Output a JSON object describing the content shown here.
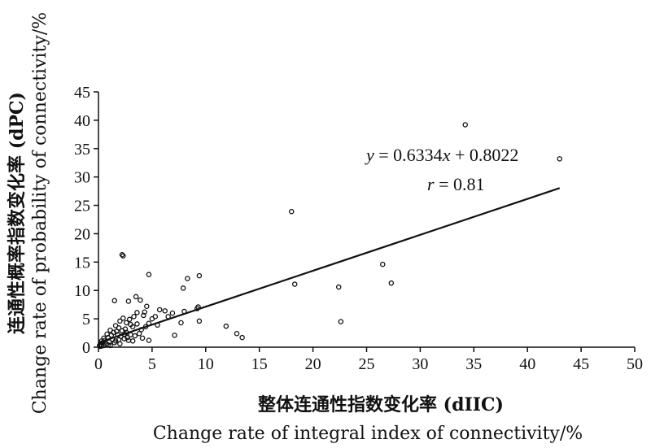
{
  "chart_data": {
    "type": "scatter",
    "xlabel_cn": "整体连通性指数变化率 (dIIC)",
    "xlabel_en": "Change rate of integral index of connectivity/%",
    "ylabel_cn": "连通性概率指数变化率 (dPC)",
    "ylabel_en": "Change rate of probability of connectivity/%",
    "xlim": [
      0,
      50
    ],
    "ylim": [
      0,
      45
    ],
    "xticks": [
      "0",
      "5",
      "10",
      "15",
      "20",
      "25",
      "30",
      "35",
      "40",
      "45",
      "50"
    ],
    "yticks": [
      "0",
      "5",
      "10",
      "15",
      "20",
      "25",
      "30",
      "35",
      "40",
      "45"
    ],
    "grid": false,
    "regression": {
      "equation_y": "y",
      "equation_rest": " = 0.6334",
      "equation_x": "x",
      "equation_tail": " + 0.8022",
      "r_label": "r",
      "r_rest": " = 0.81",
      "slope": 0.6334,
      "intercept": 0.8022,
      "x_range": [
        0,
        43
      ]
    },
    "points": [
      [
        34.2,
        39.2
      ],
      [
        43.0,
        33.2
      ],
      [
        18.0,
        23.9
      ],
      [
        26.5,
        14.6
      ],
      [
        27.3,
        11.3
      ],
      [
        22.4,
        10.6
      ],
      [
        18.3,
        11.1
      ],
      [
        22.6,
        4.5
      ],
      [
        2.2,
        16.3
      ],
      [
        2.3,
        16.1
      ],
      [
        4.7,
        12.8
      ],
      [
        9.4,
        12.6
      ],
      [
        8.3,
        12.1
      ],
      [
        7.9,
        10.4
      ],
      [
        9.3,
        7.1
      ],
      [
        9.2,
        6.8
      ],
      [
        9.4,
        4.6
      ],
      [
        7.7,
        4.3
      ],
      [
        11.9,
        3.7
      ],
      [
        12.9,
        2.4
      ],
      [
        13.4,
        1.7
      ],
      [
        7.1,
        2.1
      ],
      [
        4.7,
        1.2
      ],
      [
        4.1,
        1.6
      ],
      [
        8.0,
        6.3
      ],
      [
        6.9,
        6.0
      ],
      [
        6.2,
        6.4
      ],
      [
        5.7,
        6.6
      ],
      [
        5.3,
        5.4
      ],
      [
        5.5,
        3.9
      ],
      [
        4.5,
        7.2
      ],
      [
        4.3,
        6.2
      ],
      [
        4.7,
        4.2
      ],
      [
        3.9,
        8.3
      ],
      [
        3.5,
        8.9
      ],
      [
        3.6,
        6.1
      ],
      [
        3.3,
        5.4
      ],
      [
        2.8,
        8.1
      ],
      [
        2.9,
        4.9
      ],
      [
        2.6,
        4.3
      ],
      [
        2.3,
        5.1
      ],
      [
        2.0,
        4.6
      ],
      [
        1.5,
        8.2
      ],
      [
        1.6,
        3.8
      ],
      [
        1.9,
        3.4
      ],
      [
        2.2,
        2.9
      ],
      [
        2.6,
        2.6
      ],
      [
        3.0,
        2.2
      ],
      [
        3.4,
        2.0
      ],
      [
        3.8,
        2.4
      ],
      [
        4.0,
        3.1
      ],
      [
        3.2,
        3.6
      ],
      [
        2.7,
        1.7
      ],
      [
        2.1,
        1.9
      ],
      [
        1.8,
        2.2
      ],
      [
        1.4,
        2.6
      ],
      [
        1.2,
        2.1
      ],
      [
        1.1,
        3.0
      ],
      [
        0.9,
        1.7
      ],
      [
        0.8,
        2.3
      ],
      [
        0.6,
        1.2
      ],
      [
        0.5,
        1.6
      ],
      [
        0.4,
        0.8
      ],
      [
        0.3,
        1.1
      ],
      [
        0.2,
        0.5
      ],
      [
        0.1,
        0.3
      ],
      [
        0.7,
        0.6
      ],
      [
        1.0,
        0.9
      ],
      [
        1.3,
        1.4
      ],
      [
        1.6,
        1.1
      ],
      [
        1.9,
        1.3
      ],
      [
        2.4,
        1.5
      ],
      [
        2.8,
        1.2
      ],
      [
        3.2,
        1.1
      ],
      [
        0.5,
        0.3
      ],
      [
        0.9,
        0.4
      ],
      [
        1.5,
        0.8
      ],
      [
        2.0,
        0.6
      ],
      [
        0.3,
        0.2
      ],
      [
        0.15,
        0.15
      ],
      [
        1.1,
        0.3
      ],
      [
        3.6,
        4.1
      ],
      [
        4.2,
        5.6
      ],
      [
        5.0,
        5.0
      ],
      [
        2.5,
        3.2
      ],
      [
        1.7,
        2.8
      ],
      [
        2.4,
        2.3
      ],
      [
        4.4,
        3.6
      ],
      [
        3.0,
        4.0
      ],
      [
        6.5,
        5.4
      ]
    ]
  }
}
